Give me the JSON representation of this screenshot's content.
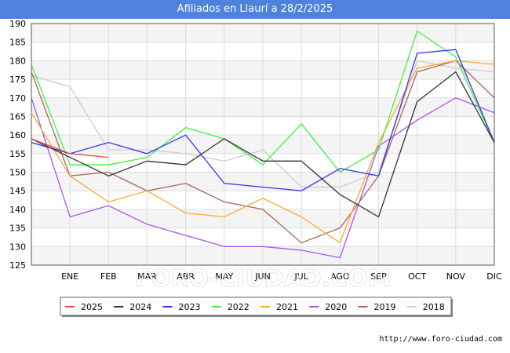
{
  "header": {
    "title": "Afiliados en Llaurí a 28/2/2025"
  },
  "footer": {
    "url": "http://www.foro-ciudad.com"
  },
  "watermark": "FORO-CIUDAD.COM",
  "chart_data": {
    "type": "line",
    "title": "Afiliados en Llaurí a 28/2/2025",
    "xlabel": "",
    "ylabel": "",
    "categories": [
      "",
      "ENE",
      "FEB",
      "MAR",
      "ABR",
      "MAY",
      "JUN",
      "JUL",
      "AGO",
      "SEP",
      "OCT",
      "NOV",
      "DIC"
    ],
    "ylim": [
      125,
      190
    ],
    "yticks": [
      125,
      130,
      135,
      140,
      145,
      150,
      155,
      160,
      165,
      170,
      175,
      180,
      185,
      190
    ],
    "grid": true,
    "legend_position": "bottom",
    "series": [
      {
        "name": "2025",
        "color": "#ee4444",
        "values": [
          159,
          155,
          154,
          null,
          null,
          null,
          null,
          null,
          null,
          null,
          null,
          null,
          null
        ]
      },
      {
        "name": "2024",
        "color": "#333333",
        "values": [
          159,
          154,
          149,
          153,
          152,
          159,
          153,
          153,
          144,
          138,
          169,
          177,
          158
        ]
      },
      {
        "name": "2023",
        "color": "#3333ee",
        "values": [
          158,
          155,
          158,
          155,
          160,
          147,
          146,
          145,
          151,
          149,
          182,
          183,
          158
        ]
      },
      {
        "name": "2022",
        "color": "#44ee44",
        "values": [
          179,
          152,
          152,
          154,
          162,
          159,
          152,
          163,
          150,
          156,
          188,
          181,
          158
        ]
      },
      {
        "name": "2021",
        "color": "#ffaa33",
        "values": [
          166,
          149,
          142,
          145,
          139,
          138,
          143,
          138,
          131,
          158,
          178,
          180,
          179
        ]
      },
      {
        "name": "2020",
        "color": "#aa55ee",
        "values": [
          170,
          138,
          141,
          136,
          133,
          130,
          130,
          129,
          127,
          157,
          164,
          170,
          166
        ]
      },
      {
        "name": "2019",
        "color": "#aa6655",
        "values": [
          177,
          149,
          150,
          145,
          147,
          142,
          140,
          131,
          135,
          149,
          177,
          180,
          170
        ]
      },
      {
        "name": "2018",
        "color": "#cccccc",
        "values": [
          176,
          173,
          156,
          156,
          155,
          153,
          156,
          146,
          146,
          150,
          180,
          178,
          177
        ]
      }
    ]
  }
}
